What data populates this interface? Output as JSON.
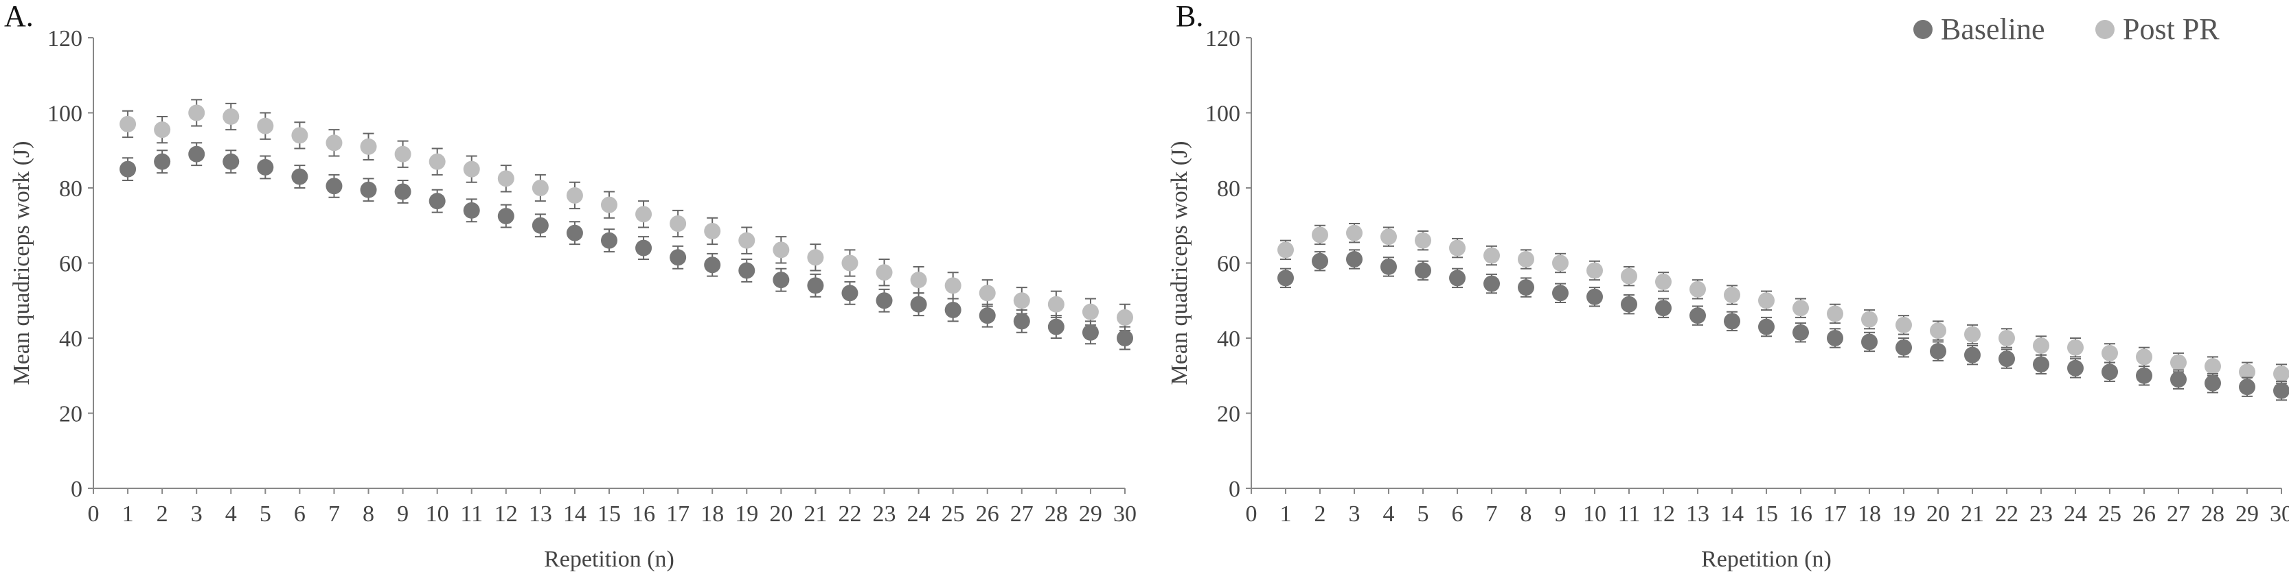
{
  "legend": {
    "items": [
      {
        "label": "Baseline",
        "color": "#767676"
      },
      {
        "label": "Post PR",
        "color": "#bdbdbd"
      }
    ],
    "placement": "top-right"
  },
  "chart_data": [
    {
      "type": "scatter",
      "panel_label": "A.",
      "xlabel": "Repetition (n)",
      "ylabel": "Mean quadriceps work (J)",
      "xlim": [
        0,
        30
      ],
      "ylim": [
        0,
        120
      ],
      "x_ticks": [
        0,
        1,
        2,
        3,
        4,
        5,
        6,
        7,
        8,
        9,
        10,
        11,
        12,
        13,
        14,
        15,
        16,
        17,
        18,
        19,
        20,
        21,
        22,
        23,
        24,
        25,
        26,
        27,
        28,
        29,
        30
      ],
      "y_ticks": [
        0,
        20,
        40,
        60,
        80,
        100,
        120
      ],
      "grid": false,
      "error_bars": true,
      "x": [
        1,
        2,
        3,
        4,
        5,
        6,
        7,
        8,
        9,
        10,
        11,
        12,
        13,
        14,
        15,
        16,
        17,
        18,
        19,
        20,
        21,
        22,
        23,
        24,
        25,
        26,
        27,
        28,
        29,
        30
      ],
      "series": [
        {
          "name": "Baseline",
          "color": "#767676",
          "values": [
            85,
            87,
            89,
            87,
            85.5,
            83,
            80.5,
            79.5,
            79,
            76.5,
            74,
            72.5,
            70,
            68,
            66,
            64,
            61.5,
            59.5,
            58,
            55.5,
            54,
            52,
            50,
            49,
            47.5,
            46,
            44.5,
            43,
            41.5,
            40
          ],
          "error": [
            3,
            3,
            3,
            3,
            3,
            3,
            3,
            3,
            3,
            3,
            3,
            3,
            3,
            3,
            3,
            3,
            3,
            3,
            3,
            3,
            3,
            3,
            3,
            3,
            3,
            3,
            3,
            3,
            3,
            3
          ]
        },
        {
          "name": "Post PR",
          "color": "#bdbdbd",
          "values": [
            97,
            95.5,
            100,
            99,
            96.5,
            94,
            92,
            91,
            89,
            87,
            85,
            82.5,
            80,
            78,
            75.5,
            73,
            70.5,
            68.5,
            66,
            63.5,
            61.5,
            60,
            57.5,
            55.5,
            54,
            52,
            50,
            49,
            47,
            45.5
          ],
          "error": [
            3.5,
            3.5,
            3.5,
            3.5,
            3.5,
            3.5,
            3.5,
            3.5,
            3.5,
            3.5,
            3.5,
            3.5,
            3.5,
            3.5,
            3.5,
            3.5,
            3.5,
            3.5,
            3.5,
            3.5,
            3.5,
            3.5,
            3.5,
            3.5,
            3.5,
            3.5,
            3.5,
            3.5,
            3.5,
            3.5
          ]
        }
      ]
    },
    {
      "type": "scatter",
      "panel_label": "B.",
      "xlabel": "Repetition (n)",
      "ylabel": "Mean quadriceps work (J)",
      "xlim": [
        0,
        30
      ],
      "ylim": [
        0,
        120
      ],
      "x_ticks": [
        0,
        1,
        2,
        3,
        4,
        5,
        6,
        7,
        8,
        9,
        10,
        11,
        12,
        13,
        14,
        15,
        16,
        17,
        18,
        19,
        20,
        21,
        22,
        23,
        24,
        25,
        26,
        27,
        28,
        29,
        30
      ],
      "y_ticks": [
        0,
        20,
        40,
        60,
        80,
        100,
        120
      ],
      "grid": false,
      "error_bars": true,
      "x": [
        1,
        2,
        3,
        4,
        5,
        6,
        7,
        8,
        9,
        10,
        11,
        12,
        13,
        14,
        15,
        16,
        17,
        18,
        19,
        20,
        21,
        22,
        23,
        24,
        25,
        26,
        27,
        28,
        29,
        30
      ],
      "series": [
        {
          "name": "Baseline",
          "color": "#767676",
          "values": [
            56,
            60.5,
            61,
            59,
            58,
            56,
            54.5,
            53.5,
            52,
            51,
            49,
            48,
            46,
            44.5,
            43,
            41.5,
            40,
            39,
            37.5,
            36.5,
            35.5,
            34.5,
            33,
            32,
            31,
            30,
            29,
            28,
            27,
            26
          ],
          "error": [
            2.5,
            2.5,
            2.5,
            2.5,
            2.5,
            2.5,
            2.5,
            2.5,
            2.5,
            2.5,
            2.5,
            2.5,
            2.5,
            2.5,
            2.5,
            2.5,
            2.5,
            2.5,
            2.5,
            2.5,
            2.5,
            2.5,
            2.5,
            2.5,
            2.5,
            2.5,
            2.5,
            2.5,
            2.5,
            2.5
          ]
        },
        {
          "name": "Post PR",
          "color": "#bdbdbd",
          "values": [
            63.5,
            67.5,
            68,
            67,
            66,
            64,
            62,
            61,
            60,
            58,
            56.5,
            55,
            53,
            51.5,
            50,
            48,
            46.5,
            45,
            43.5,
            42,
            41,
            40,
            38,
            37.5,
            36,
            35,
            33.5,
            32.5,
            31,
            30.5
          ],
          "error": [
            2.5,
            2.5,
            2.5,
            2.5,
            2.5,
            2.5,
            2.5,
            2.5,
            2.5,
            2.5,
            2.5,
            2.5,
            2.5,
            2.5,
            2.5,
            2.5,
            2.5,
            2.5,
            2.5,
            2.5,
            2.5,
            2.5,
            2.5,
            2.5,
            2.5,
            2.5,
            2.5,
            2.5,
            2.5,
            2.5
          ]
        }
      ]
    }
  ]
}
